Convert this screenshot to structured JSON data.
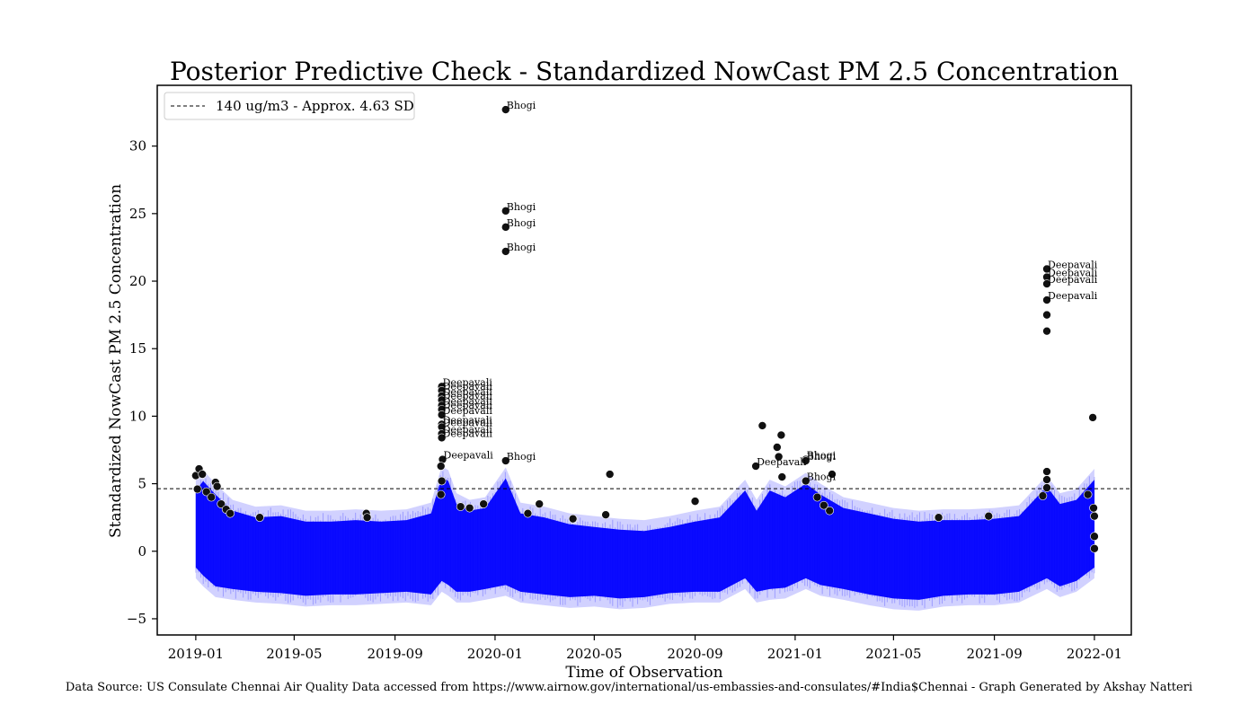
{
  "chart_data": {
    "type": "scatter",
    "title": "Posterior Predictive Check - Standardized NowCast PM 2.5 Concentration",
    "xlabel": "Time of Observation",
    "ylabel": "Standardized NowCast PM 2.5 Concentration",
    "source": "Data Source: US Consulate Chennai Air Quality Data accessed from https://www.airnow.gov/international/us-embassies-and-consulates/#India$Chennai  - Graph Generated by Akshay Natteri",
    "xlim": [
      "2018-11-15",
      "2022-02-15"
    ],
    "ylim": [
      -6.2,
      34.5
    ],
    "yticks": [
      -5,
      0,
      5,
      10,
      15,
      20,
      25,
      30
    ],
    "ytick_labels": [
      "−5",
      "0",
      "5",
      "10",
      "15",
      "20",
      "25",
      "30"
    ],
    "xticks": [
      "2019-01",
      "2019-05",
      "2019-09",
      "2020-01",
      "2020-05",
      "2020-09",
      "2021-01",
      "2021-05",
      "2021-09",
      "2022-01"
    ],
    "grid": false,
    "legend": {
      "placement": "top-left",
      "entries": [
        "140 ug/m3 - Approx. 4.63 SD"
      ]
    },
    "threshold": {
      "y": 4.63,
      "style": "dashed",
      "color": "#000000"
    },
    "band": {
      "name": "posterior predictive draws",
      "color": "#0000ff",
      "x": [
        "2019-01-01",
        "2019-01-10",
        "2019-01-25",
        "2019-02-15",
        "2019-03-15",
        "2019-04-15",
        "2019-05-15",
        "2019-06-15",
        "2019-07-15",
        "2019-08-15",
        "2019-09-15",
        "2019-10-15",
        "2019-10-28",
        "2019-11-05",
        "2019-11-15",
        "2019-12-01",
        "2019-12-20",
        "2020-01-14",
        "2020-02-01",
        "2020-03-01",
        "2020-04-01",
        "2020-05-01",
        "2020-06-01",
        "2020-07-01",
        "2020-08-01",
        "2020-09-01",
        "2020-10-01",
        "2020-11-01",
        "2020-11-15",
        "2020-12-01",
        "2020-12-20",
        "2021-01-14",
        "2021-02-01",
        "2021-03-01",
        "2021-04-01",
        "2021-05-01",
        "2021-06-01",
        "2021-07-01",
        "2021-08-01",
        "2021-09-01",
        "2021-10-01",
        "2021-11-04",
        "2021-11-20",
        "2021-12-10",
        "2022-01-01"
      ],
      "upper": [
        4.5,
        5.2,
        4.2,
        3.0,
        2.5,
        2.6,
        2.2,
        2.2,
        2.3,
        2.2,
        2.3,
        2.8,
        5.5,
        5.2,
        3.5,
        3.0,
        3.2,
        5.4,
        2.8,
        2.5,
        2.0,
        1.8,
        1.6,
        1.5,
        1.8,
        2.2,
        2.5,
        4.5,
        3.0,
        4.5,
        4.0,
        5.0,
        4.2,
        3.2,
        2.8,
        2.4,
        2.2,
        2.3,
        2.3,
        2.4,
        2.6,
        4.8,
        3.5,
        3.8,
        5.3
      ],
      "lower": [
        -1.2,
        -1.8,
        -2.6,
        -2.8,
        -3.0,
        -3.1,
        -3.3,
        -3.2,
        -3.2,
        -3.1,
        -3.0,
        -3.2,
        -2.2,
        -2.5,
        -3.0,
        -3.0,
        -2.8,
        -2.5,
        -3.0,
        -3.2,
        -3.4,
        -3.3,
        -3.5,
        -3.4,
        -3.1,
        -3.0,
        -3.0,
        -2.0,
        -3.0,
        -2.8,
        -2.7,
        -2.0,
        -2.5,
        -2.8,
        -3.2,
        -3.5,
        -3.6,
        -3.3,
        -3.2,
        -3.2,
        -3.0,
        -2.0,
        -2.6,
        -2.2,
        -1.2
      ]
    },
    "series": [
      {
        "color": "#111111",
        "points": [
          {
            "x": "2019-01-01",
            "y": 5.6
          },
          {
            "x": "2019-01-05",
            "y": 6.1
          },
          {
            "x": "2019-01-09",
            "y": 5.7
          },
          {
            "x": "2019-01-03",
            "y": 4.6
          },
          {
            "x": "2019-01-14",
            "y": 4.4
          },
          {
            "x": "2019-01-20",
            "y": 4.0
          },
          {
            "x": "2019-01-25",
            "y": 5.1
          },
          {
            "x": "2019-01-27",
            "y": 4.8
          },
          {
            "x": "2019-02-01",
            "y": 3.5
          },
          {
            "x": "2019-02-07",
            "y": 3.1
          },
          {
            "x": "2019-02-12",
            "y": 2.8
          },
          {
            "x": "2019-03-20",
            "y": 2.5
          },
          {
            "x": "2019-07-28",
            "y": 2.8
          },
          {
            "x": "2019-07-29",
            "y": 2.5
          },
          {
            "x": "2019-10-28",
            "y": 12.2,
            "label": "Deepavali"
          },
          {
            "x": "2019-10-28",
            "y": 11.9,
            "label": "Deepavali"
          },
          {
            "x": "2019-10-28",
            "y": 11.5,
            "label": "Deepavali"
          },
          {
            "x": "2019-10-28",
            "y": 11.2,
            "label": "Deepavali"
          },
          {
            "x": "2019-10-28",
            "y": 10.8,
            "label": "Deepavali"
          },
          {
            "x": "2019-10-28",
            "y": 10.5,
            "label": "Deepavali"
          },
          {
            "x": "2019-10-28",
            "y": 10.1,
            "label": "Deepavali"
          },
          {
            "x": "2019-10-28",
            "y": 9.4,
            "label": "Deepavali"
          },
          {
            "x": "2019-10-28",
            "y": 9.2,
            "label": "Deepavali"
          },
          {
            "x": "2019-10-28",
            "y": 8.7,
            "label": "Deepavali"
          },
          {
            "x": "2019-10-28",
            "y": 8.4,
            "label": "Deepavali"
          },
          {
            "x": "2019-10-29",
            "y": 6.8,
            "label": "Deepavali"
          },
          {
            "x": "2019-10-27",
            "y": 6.3
          },
          {
            "x": "2019-10-28",
            "y": 5.2
          },
          {
            "x": "2019-10-27",
            "y": 4.2
          },
          {
            "x": "2019-11-20",
            "y": 3.3
          },
          {
            "x": "2019-12-01",
            "y": 3.2
          },
          {
            "x": "2019-12-18",
            "y": 3.5
          },
          {
            "x": "2020-02-10",
            "y": 2.8
          },
          {
            "x": "2020-02-24",
            "y": 3.5
          },
          {
            "x": "2020-04-05",
            "y": 2.4
          },
          {
            "x": "2020-05-15",
            "y": 2.7
          },
          {
            "x": "2020-01-14",
            "y": 32.7,
            "label": "Bhogi"
          },
          {
            "x": "2020-01-14",
            "y": 25.2,
            "label": "Bhogi"
          },
          {
            "x": "2020-01-14",
            "y": 24.0,
            "label": "Bhogi"
          },
          {
            "x": "2020-01-14",
            "y": 22.2,
            "label": "Bhogi"
          },
          {
            "x": "2020-01-14",
            "y": 6.7,
            "label": "Bhogi"
          },
          {
            "x": "2020-05-20",
            "y": 5.7
          },
          {
            "x": "2020-09-01",
            "y": 3.7
          },
          {
            "x": "2020-11-14",
            "y": 6.3,
            "label": "Deepavali"
          },
          {
            "x": "2020-11-22",
            "y": 9.3
          },
          {
            "x": "2020-12-10",
            "y": 7.7
          },
          {
            "x": "2020-12-12",
            "y": 7.0
          },
          {
            "x": "2020-12-15",
            "y": 8.6
          },
          {
            "x": "2020-12-16",
            "y": 5.5
          },
          {
            "x": "2021-01-14",
            "y": 6.8,
            "label": "Bhogi"
          },
          {
            "x": "2021-01-14",
            "y": 6.7,
            "label": "Bhogi"
          },
          {
            "x": "2021-01-14",
            "y": 5.2,
            "label": "Bhogi"
          },
          {
            "x": "2021-01-28",
            "y": 4.0
          },
          {
            "x": "2021-02-05",
            "y": 3.4
          },
          {
            "x": "2021-02-12",
            "y": 3.0
          },
          {
            "x": "2021-02-15",
            "y": 5.7
          },
          {
            "x": "2021-06-25",
            "y": 2.5
          },
          {
            "x": "2021-08-25",
            "y": 2.6
          },
          {
            "x": "2021-11-04",
            "y": 20.9,
            "label": "Deepavali"
          },
          {
            "x": "2021-11-04",
            "y": 20.3,
            "label": "Deepavali"
          },
          {
            "x": "2021-11-04",
            "y": 19.8,
            "label": "Deepavali"
          },
          {
            "x": "2021-11-04",
            "y": 18.6,
            "label": "Deepavali"
          },
          {
            "x": "2021-11-04",
            "y": 17.5
          },
          {
            "x": "2021-11-04",
            "y": 16.3
          },
          {
            "x": "2021-11-04",
            "y": 5.9
          },
          {
            "x": "2021-11-04",
            "y": 5.3
          },
          {
            "x": "2021-11-04",
            "y": 4.7
          },
          {
            "x": "2021-10-30",
            "y": 4.1
          },
          {
            "x": "2021-12-24",
            "y": 4.2
          },
          {
            "x": "2021-12-30",
            "y": 9.9
          },
          {
            "x": "2021-12-31",
            "y": 3.2
          },
          {
            "x": "2022-01-01",
            "y": 2.6
          },
          {
            "x": "2022-01-01",
            "y": 1.1
          },
          {
            "x": "2022-01-01",
            "y": 0.2
          }
        ]
      }
    ]
  }
}
